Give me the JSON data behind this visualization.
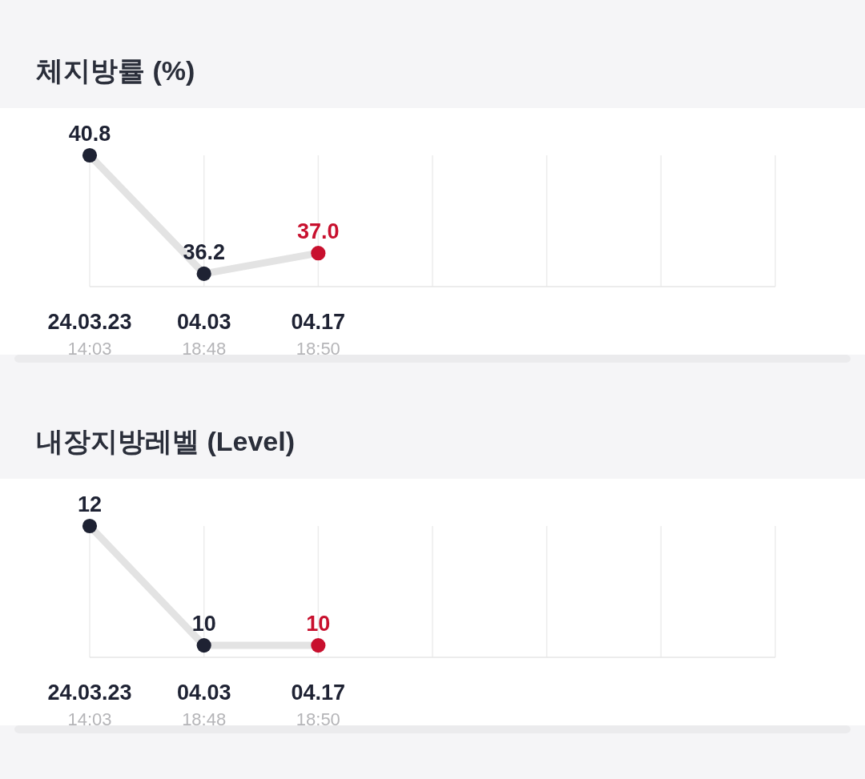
{
  "chart_data": [
    {
      "type": "line",
      "title": "체지방률 (%)",
      "categories": [
        "24.03.23\n14:03",
        "04.03\n18:48",
        "04.17\n18:50",
        null,
        null,
        null,
        null
      ],
      "series": [
        {
          "color": "#e3e3e3",
          "colors": [
            "#1e2233",
            "#1e2233",
            "#c8102e",
            null,
            null,
            null,
            null
          ],
          "values": [
            40.8,
            36.2,
            37.0,
            null,
            null,
            null,
            null
          ],
          "value_labels": [
            "40.8",
            "36.2",
            "37.0",
            null,
            null,
            null,
            null
          ]
        }
      ],
      "ylim": [
        35.7,
        40.8
      ],
      "grid": "x",
      "tick_labels": "x",
      "marker": "circle"
    },
    {
      "type": "line",
      "title": "내장지방레벨 (Level)",
      "categories": [
        "24.03.23\n14:03",
        "04.03\n18:48",
        "04.17\n18:50",
        null,
        null,
        null,
        null
      ],
      "series": [
        {
          "color": "#e3e3e3",
          "colors": [
            "#1e2233",
            "#1e2233",
            "#c8102e",
            null,
            null,
            null,
            null
          ],
          "values": [
            12,
            10,
            10,
            null,
            null,
            null,
            null
          ],
          "value_labels": [
            "12",
            "10",
            "10",
            null,
            null,
            null,
            null
          ]
        }
      ],
      "ylim": [
        9.8,
        12
      ],
      "grid": "x",
      "tick_labels": "x",
      "marker": "circle"
    }
  ]
}
